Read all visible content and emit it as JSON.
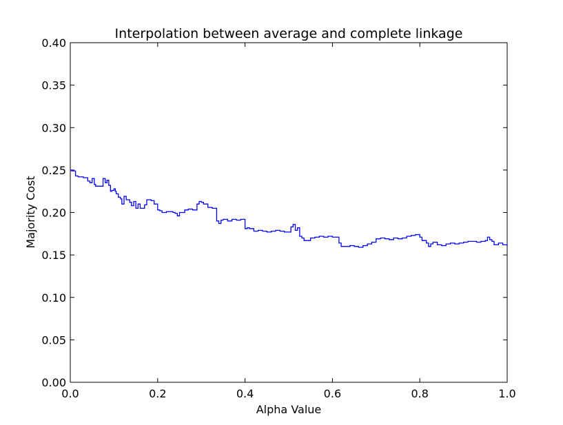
{
  "chart_data": {
    "type": "line",
    "title": "Interpolation between average and complete linkage",
    "xlabel": "Alpha Value",
    "ylabel": "Majority Cost",
    "xlim": [
      0.0,
      1.0
    ],
    "ylim": [
      0.0,
      0.4
    ],
    "x_ticks": [
      0.0,
      0.2,
      0.4,
      0.6,
      0.8,
      1.0
    ],
    "x_tick_labels": [
      "0.0",
      "0.2",
      "0.4",
      "0.6",
      "0.8",
      "1.0"
    ],
    "y_ticks": [
      0.0,
      0.05,
      0.1,
      0.15,
      0.2,
      0.25,
      0.3,
      0.35,
      0.4
    ],
    "y_tick_labels": [
      "0.00",
      "0.05",
      "0.10",
      "0.15",
      "0.20",
      "0.25",
      "0.30",
      "0.35",
      "0.40"
    ],
    "grid": false,
    "legend": "none",
    "line_color": "#0000ff",
    "series": [
      {
        "x": [
          0.0,
          0.003,
          0.012,
          0.018,
          0.03,
          0.04,
          0.045,
          0.05,
          0.055,
          0.058,
          0.06,
          0.066,
          0.075,
          0.08,
          0.084,
          0.088,
          0.092,
          0.095,
          0.1,
          0.103,
          0.105,
          0.11,
          0.115,
          0.118,
          0.123,
          0.128,
          0.13,
          0.136,
          0.14,
          0.145,
          0.15,
          0.155,
          0.16,
          0.17,
          0.175,
          0.18,
          0.185,
          0.192,
          0.2,
          0.205,
          0.21,
          0.22,
          0.235,
          0.24,
          0.245,
          0.25,
          0.255,
          0.262,
          0.27,
          0.28,
          0.29,
          0.295,
          0.3,
          0.305,
          0.315,
          0.325,
          0.33,
          0.335,
          0.34,
          0.345,
          0.35,
          0.36,
          0.37,
          0.38,
          0.39,
          0.4,
          0.405,
          0.41,
          0.42,
          0.43,
          0.44,
          0.45,
          0.46,
          0.47,
          0.48,
          0.49,
          0.5,
          0.505,
          0.51,
          0.515,
          0.52,
          0.525,
          0.53,
          0.535,
          0.545,
          0.55,
          0.56,
          0.57,
          0.58,
          0.59,
          0.6,
          0.61,
          0.615,
          0.62,
          0.63,
          0.64,
          0.65,
          0.66,
          0.67,
          0.68,
          0.69,
          0.7,
          0.71,
          0.72,
          0.73,
          0.74,
          0.75,
          0.76,
          0.77,
          0.78,
          0.79,
          0.8,
          0.805,
          0.81,
          0.815,
          0.82,
          0.825,
          0.83,
          0.84,
          0.85,
          0.86,
          0.87,
          0.88,
          0.89,
          0.9,
          0.91,
          0.92,
          0.93,
          0.94,
          0.95,
          0.955,
          0.96,
          0.965,
          0.97,
          0.98,
          0.99,
          1.0
        ],
        "y": [
          0.25,
          0.249,
          0.243,
          0.242,
          0.241,
          0.237,
          0.235,
          0.24,
          0.233,
          0.231,
          0.231,
          0.231,
          0.24,
          0.235,
          0.238,
          0.232,
          0.225,
          0.226,
          0.228,
          0.225,
          0.222,
          0.218,
          0.216,
          0.21,
          0.219,
          0.215,
          0.215,
          0.212,
          0.208,
          0.213,
          0.205,
          0.21,
          0.205,
          0.209,
          0.215,
          0.215,
          0.214,
          0.21,
          0.203,
          0.202,
          0.2,
          0.201,
          0.2,
          0.199,
          0.196,
          0.2,
          0.2,
          0.203,
          0.204,
          0.203,
          0.21,
          0.213,
          0.212,
          0.21,
          0.206,
          0.205,
          0.205,
          0.19,
          0.187,
          0.191,
          0.192,
          0.19,
          0.192,
          0.191,
          0.192,
          0.181,
          0.182,
          0.181,
          0.178,
          0.179,
          0.178,
          0.177,
          0.178,
          0.179,
          0.178,
          0.177,
          0.177,
          0.183,
          0.186,
          0.179,
          0.182,
          0.172,
          0.17,
          0.167,
          0.167,
          0.17,
          0.171,
          0.172,
          0.171,
          0.172,
          0.171,
          0.171,
          0.164,
          0.16,
          0.16,
          0.161,
          0.16,
          0.159,
          0.161,
          0.163,
          0.165,
          0.169,
          0.17,
          0.169,
          0.168,
          0.17,
          0.169,
          0.17,
          0.172,
          0.173,
          0.174,
          0.171,
          0.167,
          0.167,
          0.164,
          0.16,
          0.163,
          0.165,
          0.162,
          0.161,
          0.163,
          0.164,
          0.163,
          0.164,
          0.165,
          0.166,
          0.166,
          0.165,
          0.166,
          0.167,
          0.171,
          0.168,
          0.166,
          0.162,
          0.164,
          0.162,
          0.16
        ]
      }
    ]
  }
}
